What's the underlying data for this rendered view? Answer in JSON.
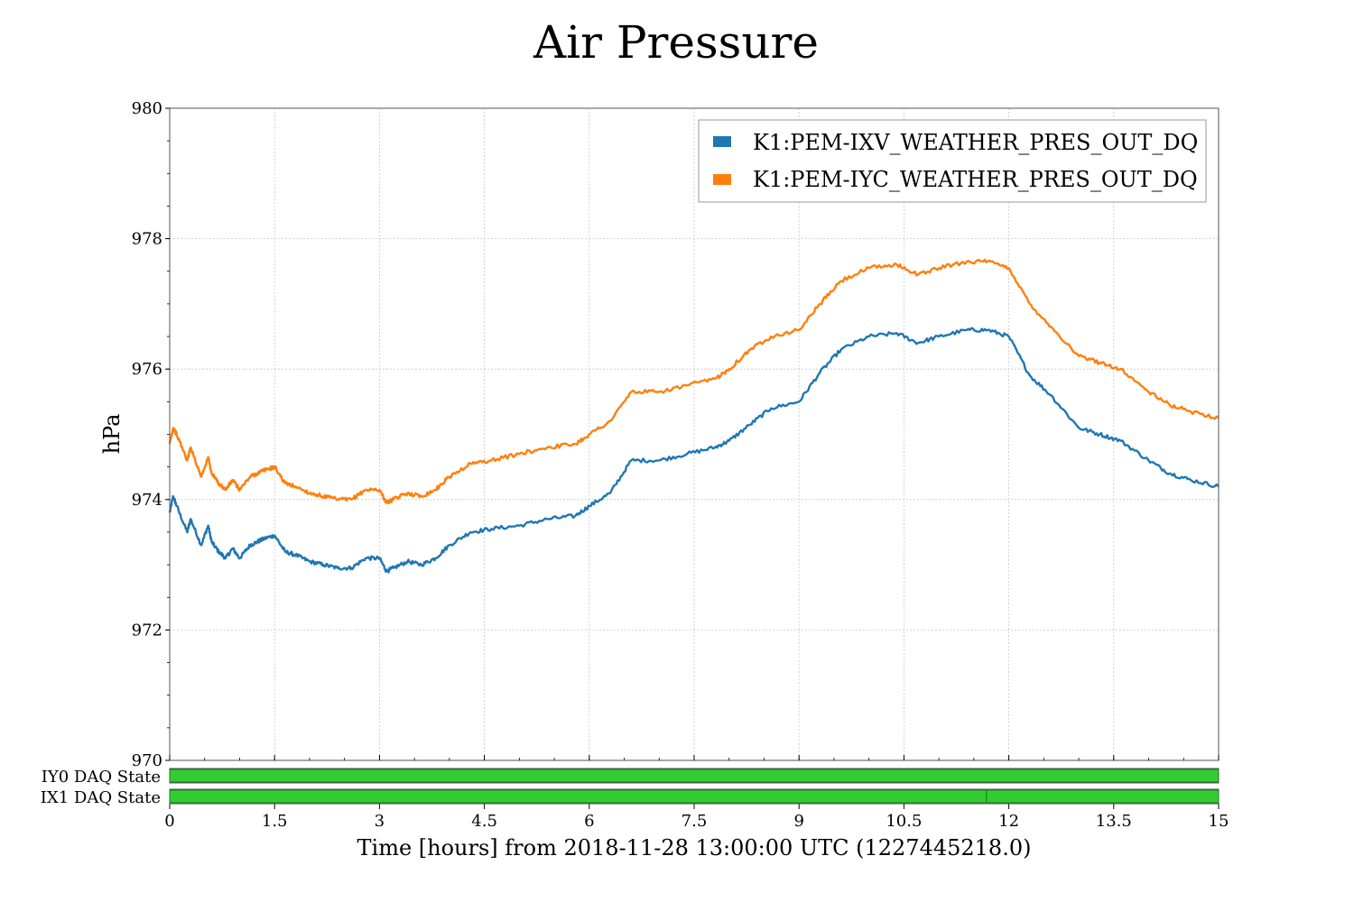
{
  "chart_data": {
    "type": "line",
    "title": "Air Pressure",
    "xlabel": "Time [hours] from 2018-11-28 13:00:00 UTC (1227445218.0)",
    "ylabel": "hPa",
    "xlim": [
      0,
      15
    ],
    "ylim": [
      970,
      980
    ],
    "x_ticks": [
      0,
      1.5,
      3,
      4.5,
      6,
      7.5,
      9,
      10.5,
      12,
      13.5,
      15
    ],
    "x_tick_labels": [
      "0",
      "1.5",
      "3",
      "4.5",
      "6",
      "7.5",
      "9",
      "10.5",
      "12",
      "13.5",
      "15"
    ],
    "y_ticks": [
      970,
      972,
      974,
      976,
      978,
      980
    ],
    "y_tick_labels": [
      "970",
      "972",
      "974",
      "976",
      "978",
      "980"
    ],
    "grid": true,
    "legend_position": "top-right",
    "series": [
      {
        "name": "K1:PEM-IXV_WEATHER_PRES_OUT_DQ",
        "color": "#1f77b4",
        "x": [
          0,
          0.05,
          0.1,
          0.25,
          0.3,
          0.45,
          0.55,
          0.6,
          0.7,
          0.8,
          0.9,
          1.0,
          1.15,
          1.25,
          1.35,
          1.5,
          1.65,
          1.8,
          2.0,
          2.2,
          2.4,
          2.6,
          2.8,
          3.0,
          3.1,
          3.2,
          3.4,
          3.6,
          3.8,
          4.0,
          4.3,
          4.6,
          5.0,
          5.4,
          5.8,
          6.0,
          6.3,
          6.6,
          7.0,
          7.4,
          7.8,
          8.0,
          8.3,
          8.6,
          9.0,
          9.3,
          9.6,
          10.0,
          10.4,
          10.7,
          11.0,
          11.4,
          11.7,
          12.0,
          12.3,
          12.6,
          13.0,
          13.3,
          13.6,
          14.0,
          14.3,
          14.6,
          15.0
        ],
        "y": [
          973.8,
          974.05,
          973.9,
          973.5,
          973.7,
          973.3,
          973.6,
          973.35,
          973.2,
          973.1,
          973.25,
          973.1,
          973.3,
          973.35,
          973.4,
          973.45,
          973.2,
          973.15,
          973.05,
          973.0,
          972.95,
          972.95,
          973.1,
          973.1,
          972.9,
          972.95,
          973.05,
          973.0,
          973.1,
          973.3,
          973.5,
          973.55,
          973.6,
          973.7,
          973.75,
          973.9,
          974.1,
          974.6,
          974.6,
          974.7,
          974.8,
          974.9,
          975.15,
          975.4,
          975.5,
          975.95,
          976.3,
          976.5,
          976.55,
          976.4,
          976.5,
          976.6,
          976.6,
          976.5,
          975.9,
          975.6,
          975.1,
          975.0,
          974.9,
          974.6,
          974.4,
          974.3,
          974.2
        ]
      },
      {
        "name": "K1:PEM-IYC_WEATHER_PRES_OUT_DQ",
        "color": "#ff7f0e",
        "x": [
          0,
          0.05,
          0.1,
          0.25,
          0.3,
          0.45,
          0.55,
          0.6,
          0.7,
          0.8,
          0.9,
          1.0,
          1.15,
          1.25,
          1.35,
          1.5,
          1.65,
          1.8,
          2.0,
          2.2,
          2.4,
          2.6,
          2.8,
          3.0,
          3.1,
          3.2,
          3.4,
          3.6,
          3.8,
          4.0,
          4.3,
          4.6,
          5.0,
          5.4,
          5.8,
          6.0,
          6.3,
          6.6,
          7.0,
          7.4,
          7.8,
          8.0,
          8.3,
          8.6,
          9.0,
          9.3,
          9.6,
          10.0,
          10.4,
          10.7,
          11.0,
          11.4,
          11.7,
          12.0,
          12.3,
          12.6,
          13.0,
          13.3,
          13.6,
          14.0,
          14.3,
          14.6,
          15.0
        ],
        "y": [
          974.85,
          975.1,
          975.0,
          974.6,
          974.8,
          974.35,
          974.65,
          974.4,
          974.25,
          974.15,
          974.3,
          974.15,
          974.35,
          974.4,
          974.45,
          974.5,
          974.25,
          974.2,
          974.1,
          974.05,
          974.0,
          974.0,
          974.15,
          974.15,
          973.95,
          974.0,
          974.1,
          974.05,
          974.15,
          974.35,
          974.55,
          974.6,
          974.7,
          974.8,
          974.85,
          975.0,
          975.2,
          975.65,
          975.65,
          975.75,
          975.85,
          976.0,
          976.3,
          976.5,
          976.6,
          977.0,
          977.35,
          977.55,
          977.6,
          977.45,
          977.55,
          977.65,
          977.65,
          977.55,
          977.0,
          976.65,
          976.2,
          976.1,
          976.0,
          975.65,
          975.45,
          975.35,
          975.25
        ]
      }
    ],
    "state_segments": [
      {
        "label": "IY0 DAQ State",
        "color": "#33cc33",
        "ranges": [
          [
            0,
            15
          ]
        ]
      },
      {
        "label": "IX1 DAQ State",
        "color": "#33cc33",
        "ranges": [
          [
            0,
            11.68
          ],
          [
            11.68,
            15
          ]
        ]
      }
    ]
  }
}
